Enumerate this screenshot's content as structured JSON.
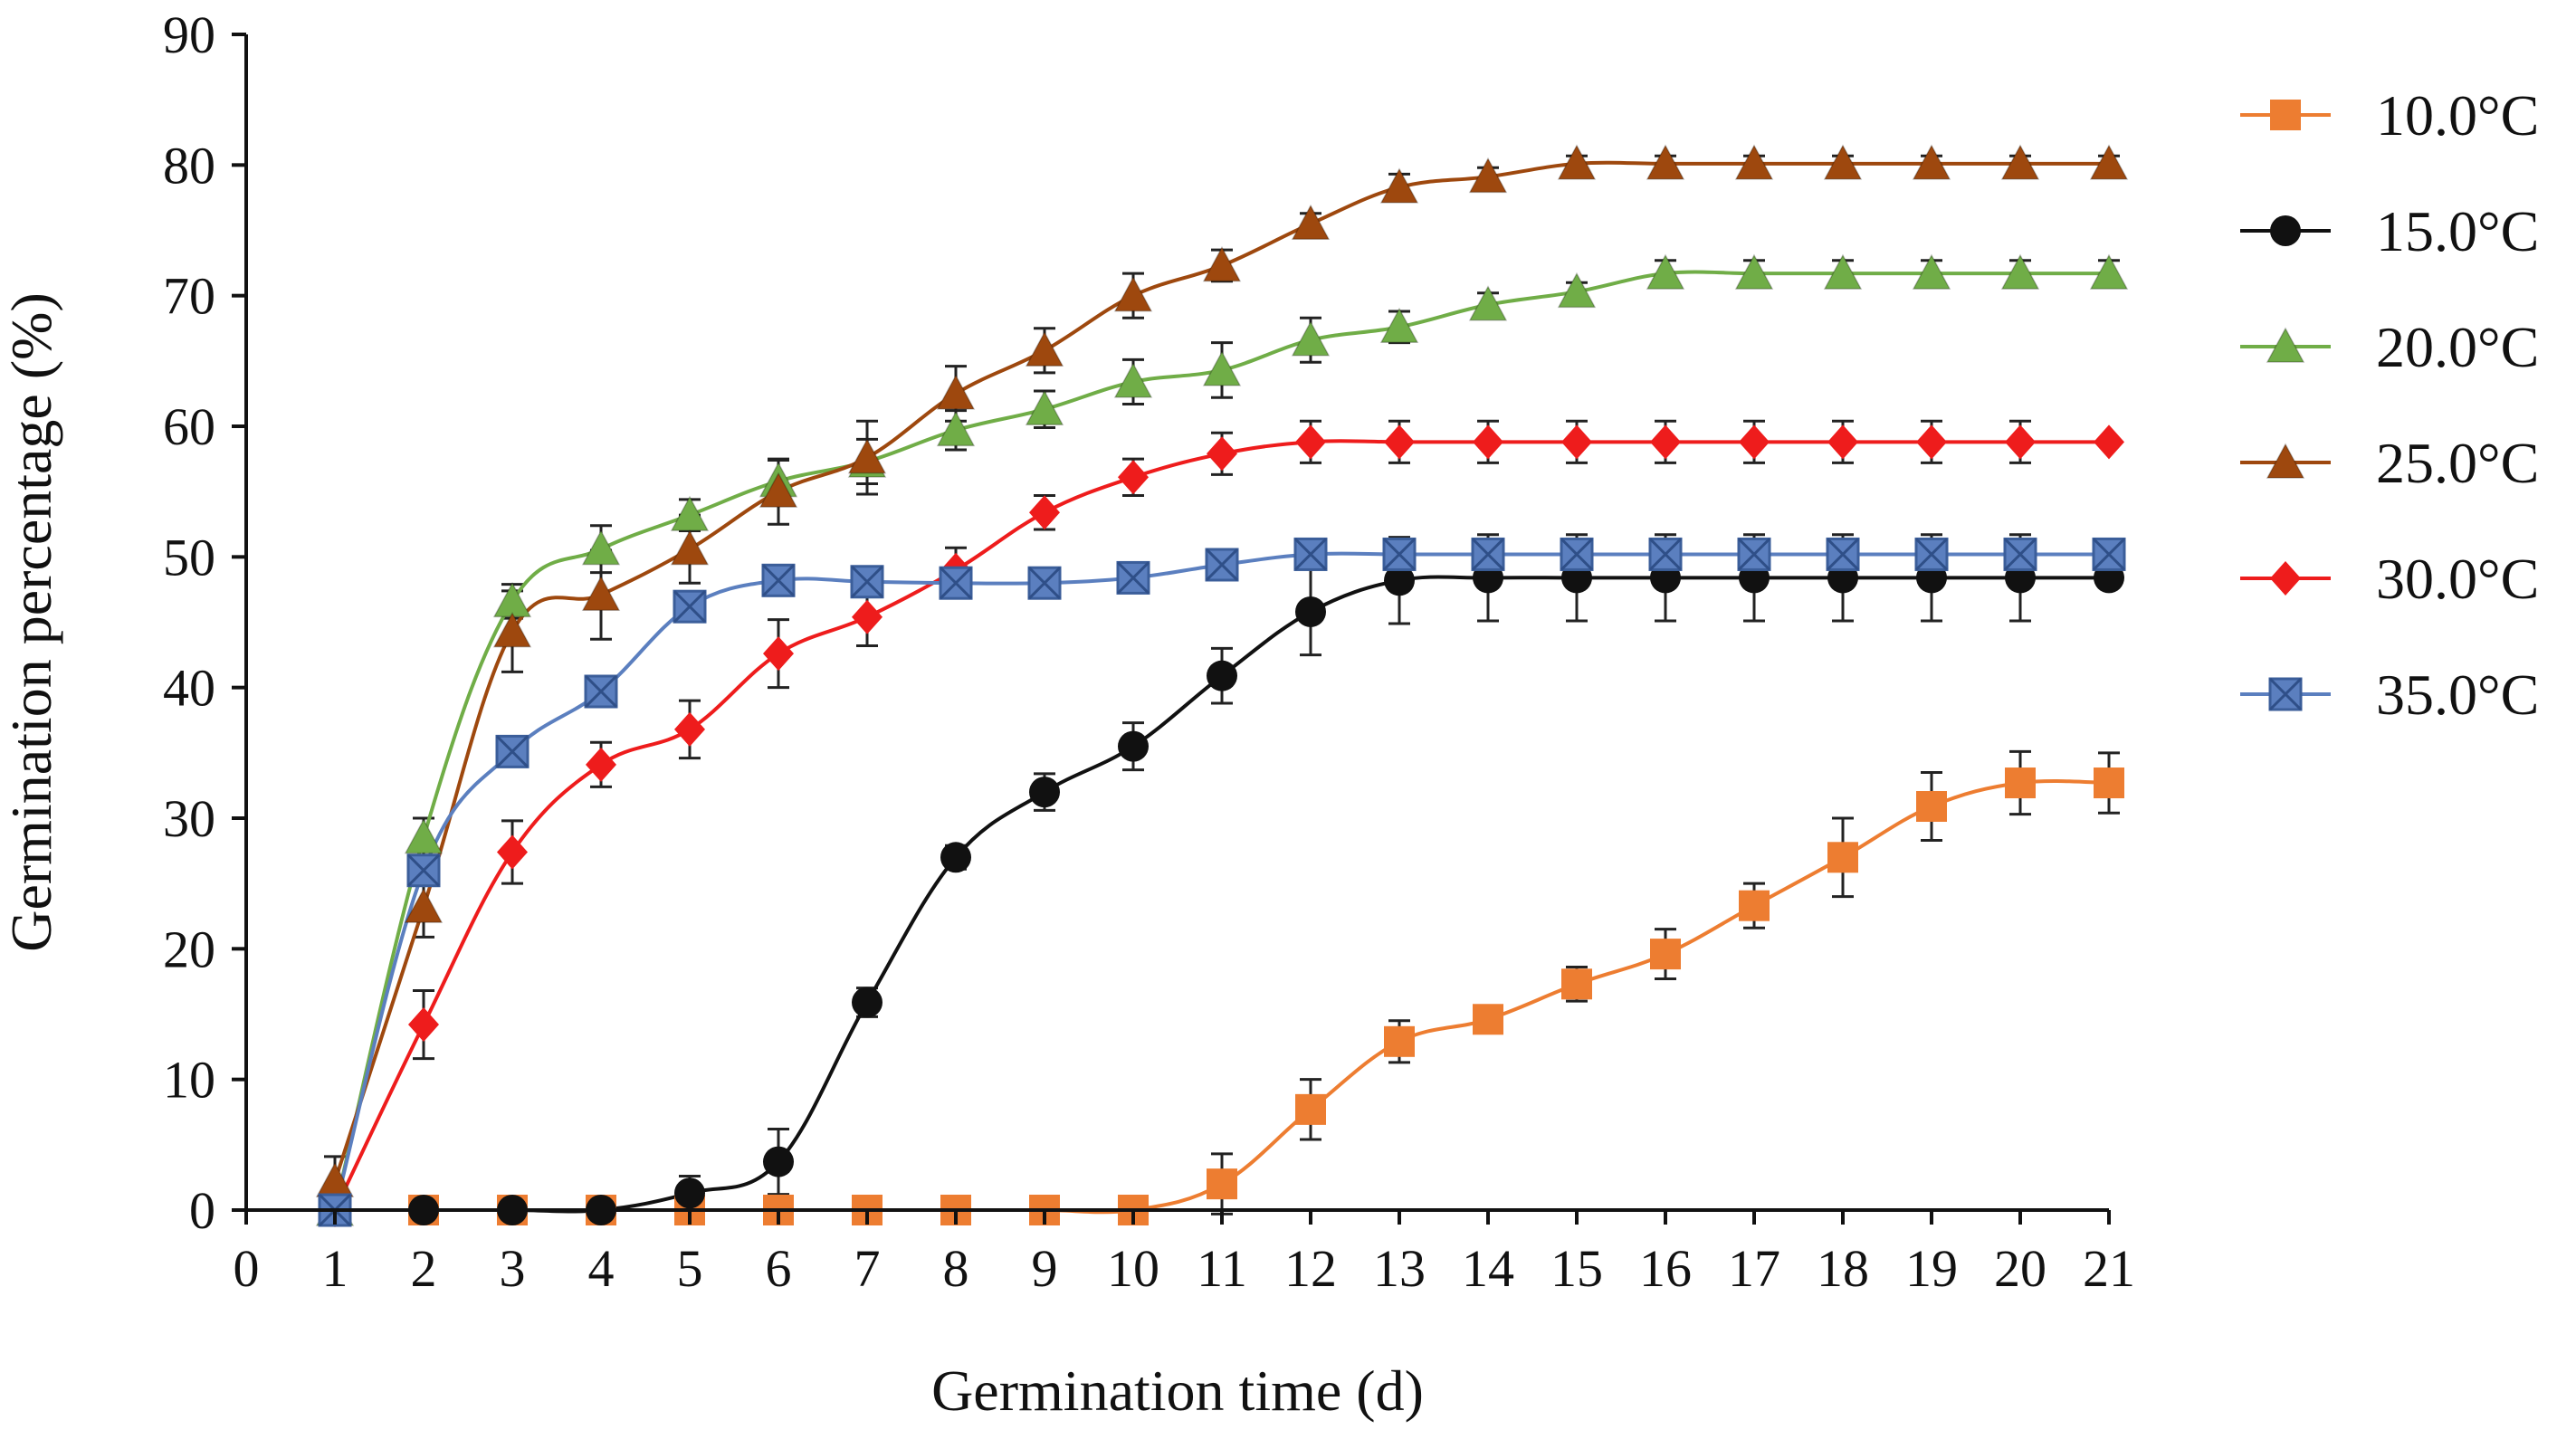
{
  "chart_data": {
    "type": "line",
    "xlabel": "Germination time (d)",
    "ylabel": "Germination percentage (%)",
    "xlim": [
      0,
      21
    ],
    "ylim": [
      0,
      90
    ],
    "x_ticks": [
      0,
      1,
      2,
      3,
      4,
      5,
      6,
      7,
      8,
      9,
      10,
      11,
      12,
      13,
      14,
      15,
      16,
      17,
      18,
      19,
      20,
      21
    ],
    "y_ticks": [
      0,
      10,
      20,
      30,
      40,
      50,
      60,
      70,
      80,
      90
    ],
    "x_tick_labels": [
      "0",
      "1",
      "2",
      "3",
      "4",
      "5",
      "6",
      "7",
      "8",
      "9",
      "10",
      "11",
      "12",
      "13",
      "14",
      "15",
      "16",
      "17",
      "18",
      "19",
      "20",
      "21"
    ],
    "y_tick_labels": [
      "0",
      "10",
      "20",
      "30",
      "40",
      "50",
      "60",
      "70",
      "80",
      "90"
    ],
    "grid": false,
    "legend_position": "right",
    "x": [
      1,
      2,
      3,
      4,
      5,
      6,
      7,
      8,
      9,
      10,
      11,
      12,
      13,
      14,
      15,
      16,
      17,
      18,
      19,
      20,
      21
    ],
    "series": [
      {
        "name": "10.0°C",
        "color": "#ED7D31",
        "marker": "square",
        "values": [
          0,
          0,
          0,
          0,
          0,
          0,
          0,
          0,
          0,
          0,
          2,
          7.7,
          12.9,
          14.6,
          17.3,
          19.6,
          23.3,
          27,
          30.9,
          32.7,
          32.7
        ],
        "errors": [
          0,
          0,
          0,
          0,
          0,
          0,
          0,
          0,
          0,
          0,
          2.3,
          2.3,
          1.6,
          0.5,
          1.3,
          1.9,
          1.7,
          3,
          2.6,
          2.4,
          2.3
        ]
      },
      {
        "name": "15.0°C",
        "color": "#111111",
        "marker": "circle",
        "values": [
          0,
          0,
          0,
          0,
          1.3,
          3.7,
          15.9,
          27,
          32,
          35.5,
          40.9,
          45.8,
          48.2,
          48.4,
          48.4,
          48.4,
          48.4,
          48.4,
          48.4,
          48.4,
          48.4
        ],
        "errors": [
          0,
          0,
          0,
          0,
          1.3,
          2.5,
          1.1,
          0.9,
          1.4,
          1.8,
          2.1,
          3.3,
          3.3,
          3.3,
          3.3,
          3.3,
          3.3,
          3.3,
          3.3,
          3.3,
          0
        ]
      },
      {
        "name": "20.0°C",
        "color": "#70AD47",
        "marker": "triangle",
        "values": [
          0,
          28.5,
          46.6,
          50.6,
          53.2,
          55.8,
          57.3,
          59.7,
          61.3,
          63.4,
          64.3,
          66.6,
          67.6,
          69.3,
          70.3,
          71.7,
          71.7,
          71.7,
          71.7,
          71.7,
          71.7
        ],
        "errors": [
          0,
          1.5,
          1.3,
          1.8,
          1.2,
          1.6,
          1.7,
          1.5,
          1.4,
          1.7,
          2.1,
          1.7,
          1.2,
          0.9,
          0.7,
          1,
          1,
          1,
          1,
          1,
          1
        ]
      },
      {
        "name": "25.0°C",
        "color": "#9E480E",
        "marker": "triangle",
        "values": [
          2.2,
          23.2,
          44.3,
          47.1,
          50.6,
          55,
          57.6,
          62.5,
          65.8,
          70,
          72.3,
          75.5,
          78.3,
          79.1,
          80.1,
          80.1,
          80.1,
          80.1,
          80.1,
          80.1,
          80.1
        ],
        "errors": [
          1.9,
          2.3,
          3.1,
          3.4,
          2.6,
          2.5,
          2.8,
          2.1,
          1.7,
          1.7,
          1.2,
          0.8,
          1,
          0.7,
          0.6,
          0.6,
          0.6,
          0.6,
          0.6,
          0.6,
          0.6
        ]
      },
      {
        "name": "30.0°C",
        "color": "#EE1C1C",
        "marker": "diamond",
        "values": [
          0,
          14.2,
          27.4,
          34.1,
          36.8,
          42.6,
          45.4,
          49,
          53.4,
          56.1,
          57.9,
          58.8,
          58.8,
          58.8,
          58.8,
          58.8,
          58.8,
          58.8,
          58.8,
          58.8,
          58.8
        ],
        "errors": [
          0,
          2.6,
          2.4,
          1.7,
          2.2,
          2.6,
          2.2,
          1.7,
          1.3,
          1.4,
          1.6,
          1.6,
          1.6,
          1.6,
          1.6,
          1.6,
          1.6,
          1.6,
          1.6,
          1.6,
          0
        ]
      },
      {
        "name": "35.0°C",
        "color": "#5B7FBF",
        "marker": "square-x",
        "values": [
          0,
          26,
          35.1,
          39.7,
          46.2,
          48.2,
          48.1,
          48,
          48,
          48.4,
          49.4,
          50.2,
          50.2,
          50.2,
          50.2,
          50.2,
          50.2,
          50.2,
          50.2,
          50.2,
          50.2
        ],
        "errors": [
          0,
          0,
          0,
          0,
          0,
          0.5,
          0.5,
          0,
          0,
          0,
          0,
          0,
          0,
          0,
          0,
          0,
          0,
          0,
          0,
          0,
          0
        ]
      }
    ]
  }
}
